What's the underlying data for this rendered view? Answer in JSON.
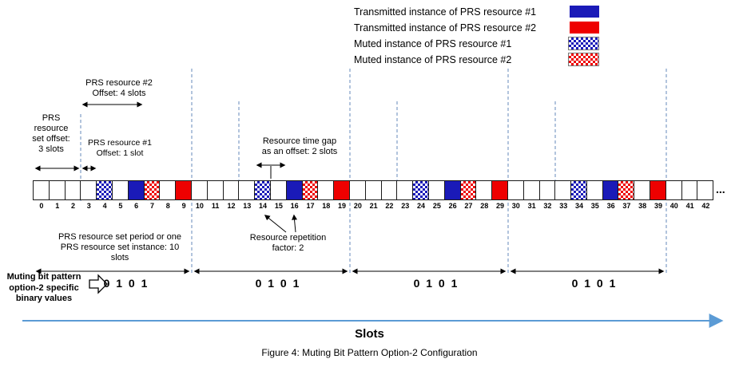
{
  "legend": {
    "items": [
      {
        "key": "t1",
        "label": "Transmitted instance of PRS resource #1"
      },
      {
        "key": "t2",
        "label": "Transmitted instance of PRS resource #2"
      },
      {
        "key": "m1",
        "label": "Muted instance of PRS resource #1"
      },
      {
        "key": "m2",
        "label": "Muted instance of PRS resource #2"
      }
    ]
  },
  "annotations": {
    "prs_set_offset": "PRS\nresource\nset offset:\n3 slots",
    "prs2_offset": "PRS resource #2\nOffset: 4 slots",
    "prs1_offset": "PRS resource #1\nOffset: 1 slot",
    "time_gap": "Resource time gap\nas an offset: 2 slots",
    "repetition": "Resource repetition\nfactor: 2",
    "set_period": "PRS resource set period or one\nPRS resource set instance: 10\nslots",
    "ellipsis": "..."
  },
  "muting": {
    "label": "Muting bit pattern\noption-2 specific\nbinary values",
    "bits": [
      "0 1 0 1",
      "0 1 0 1",
      "0 1 0 1",
      "0 1 0 1"
    ]
  },
  "slots": [
    {
      "n": 0,
      "state": "e"
    },
    {
      "n": 1,
      "state": "e"
    },
    {
      "n": 2,
      "state": "e"
    },
    {
      "n": 3,
      "state": "e"
    },
    {
      "n": 4,
      "state": "m1"
    },
    {
      "n": 5,
      "state": "e"
    },
    {
      "n": 6,
      "state": "t1"
    },
    {
      "n": 7,
      "state": "m2"
    },
    {
      "n": 8,
      "state": "e"
    },
    {
      "n": 9,
      "state": "t2"
    },
    {
      "n": 10,
      "state": "e"
    },
    {
      "n": 11,
      "state": "e"
    },
    {
      "n": 12,
      "state": "e"
    },
    {
      "n": 13,
      "state": "e"
    },
    {
      "n": 14,
      "state": "m1"
    },
    {
      "n": 15,
      "state": "e"
    },
    {
      "n": 16,
      "state": "t1"
    },
    {
      "n": 17,
      "state": "m2"
    },
    {
      "n": 18,
      "state": "e"
    },
    {
      "n": 19,
      "state": "t2"
    },
    {
      "n": 20,
      "state": "e"
    },
    {
      "n": 21,
      "state": "e"
    },
    {
      "n": 22,
      "state": "e"
    },
    {
      "n": 23,
      "state": "e"
    },
    {
      "n": 24,
      "state": "m1"
    },
    {
      "n": 25,
      "state": "e"
    },
    {
      "n": 26,
      "state": "t1"
    },
    {
      "n": 27,
      "state": "m2"
    },
    {
      "n": 28,
      "state": "e"
    },
    {
      "n": 29,
      "state": "t2"
    },
    {
      "n": 30,
      "state": "e"
    },
    {
      "n": 31,
      "state": "e"
    },
    {
      "n": 32,
      "state": "e"
    },
    {
      "n": 33,
      "state": "e"
    },
    {
      "n": 34,
      "state": "m1"
    },
    {
      "n": 35,
      "state": "e"
    },
    {
      "n": 36,
      "state": "t1"
    },
    {
      "n": 37,
      "state": "m2"
    },
    {
      "n": 38,
      "state": "e"
    },
    {
      "n": 39,
      "state": "t2"
    },
    {
      "n": 40,
      "state": "e"
    },
    {
      "n": 41,
      "state": "e"
    },
    {
      "n": 42,
      "state": "e"
    }
  ],
  "axis_label": "Slots",
  "caption": "Figure 4: Muting Bit Pattern Option-2 Configuration",
  "colors": {
    "prs1_blue": "#1a1ab8",
    "prs2_red": "#ee0000",
    "dashed_line": "#6688bb",
    "slots_axis": "#5B9BD5"
  }
}
